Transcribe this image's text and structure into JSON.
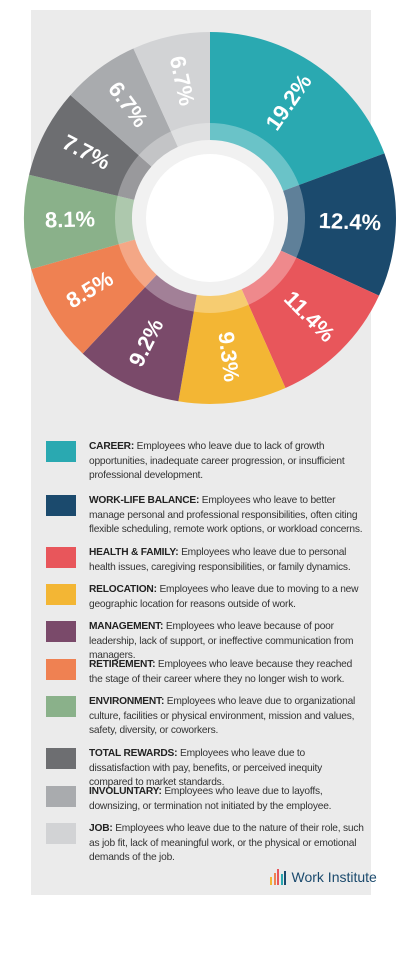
{
  "chart_data": {
    "type": "donut",
    "categories": [
      "CAREER:",
      "WORK-LIFE BALANCE:",
      "HEALTH & FAMILY:",
      "RELOCATION:",
      "MANAGEMENT:",
      "RETIREMENT:",
      "ENVIRONMENT:",
      "TOTAL REWARDS:",
      "INVOLUNTARY:",
      "JOB:"
    ],
    "descriptions": [
      "Employees who leave due to lack of growth opportunities, inadequate career progression, or insufficient professional development.",
      "Employees who leave to better manage personal and professional responsibilities, often citing flexible scheduling, remote work options, or workload concerns.",
      "Employees who leave due to personal health issues, caregiving responsibilities, or family dynamics.",
      "Employees who leave due to moving to a new geographic location for reasons outside of work.",
      "Employees who leave because of poor leadership, lack of support, or ineffective communication from managers.",
      "Employees who leave because they reached the stage of their career where they no longer wish to work.",
      "Employees who leave due to organizational culture, facilities or physical environment, mission and values, safety, diversity, or coworkers.",
      "Employees who leave due to dissatisfaction with pay, benefits, or perceived inequity compared to market standards.",
      "Employees who leave due to layoffs, downsizing, or termination not initiated by the employee.",
      "Employees who leave due to the nature of their role, such as job fit, lack of meaningful work, or the physical or emotional demands of the job."
    ],
    "values": [
      19.2,
      12.4,
      11.4,
      9.3,
      9.2,
      8.5,
      8.1,
      7.7,
      6.7,
      6.7
    ],
    "value_labels": [
      "19.2%",
      "12.4%",
      "11.4%",
      "9.3%",
      "9.2%",
      "8.5%",
      "8.1%",
      "7.7%",
      "6.7%",
      "6.7%"
    ],
    "colors": [
      "#2aa9b1",
      "#1b4a6d",
      "#e8565b",
      "#f3b634",
      "#7a4a6a",
      "#ef8152",
      "#8ab18a",
      "#6d6e71",
      "#a9abae",
      "#d2d3d5"
    ],
    "logo": "Work Institute"
  }
}
